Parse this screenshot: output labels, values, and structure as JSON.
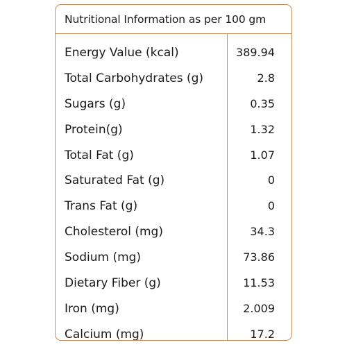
{
  "label": {
    "title": "Nutritional Information as per 100 gm",
    "rows": [
      {
        "name": "Energy Value (kcal)",
        "value": "389.94"
      },
      {
        "name": "Total Carbohydrates (g)",
        "value": "2.8"
      },
      {
        "name": "Sugars (g)",
        "value": "0.35"
      },
      {
        "name": "Protein(g)",
        "value": "1.32"
      },
      {
        "name": "Total Fat (g)",
        "value": "1.07"
      },
      {
        "name": "Saturated Fat (g)",
        "value": "0"
      },
      {
        "name": "Trans Fat (g)",
        "value": "0"
      },
      {
        "name": "Cholesterol (mg)",
        "value": "34.3"
      },
      {
        "name": "Sodium (mg)",
        "value": "73.86"
      },
      {
        "name": "Dietary Fiber (g)",
        "value": "11.53"
      },
      {
        "name": "Iron (mg)",
        "value": "2.009"
      },
      {
        "name": "Calcium (mg)",
        "value": "17.2"
      }
    ]
  },
  "colors": {
    "border": "#c98a57",
    "text": "#1a1a1a",
    "background": "#ffffff"
  }
}
